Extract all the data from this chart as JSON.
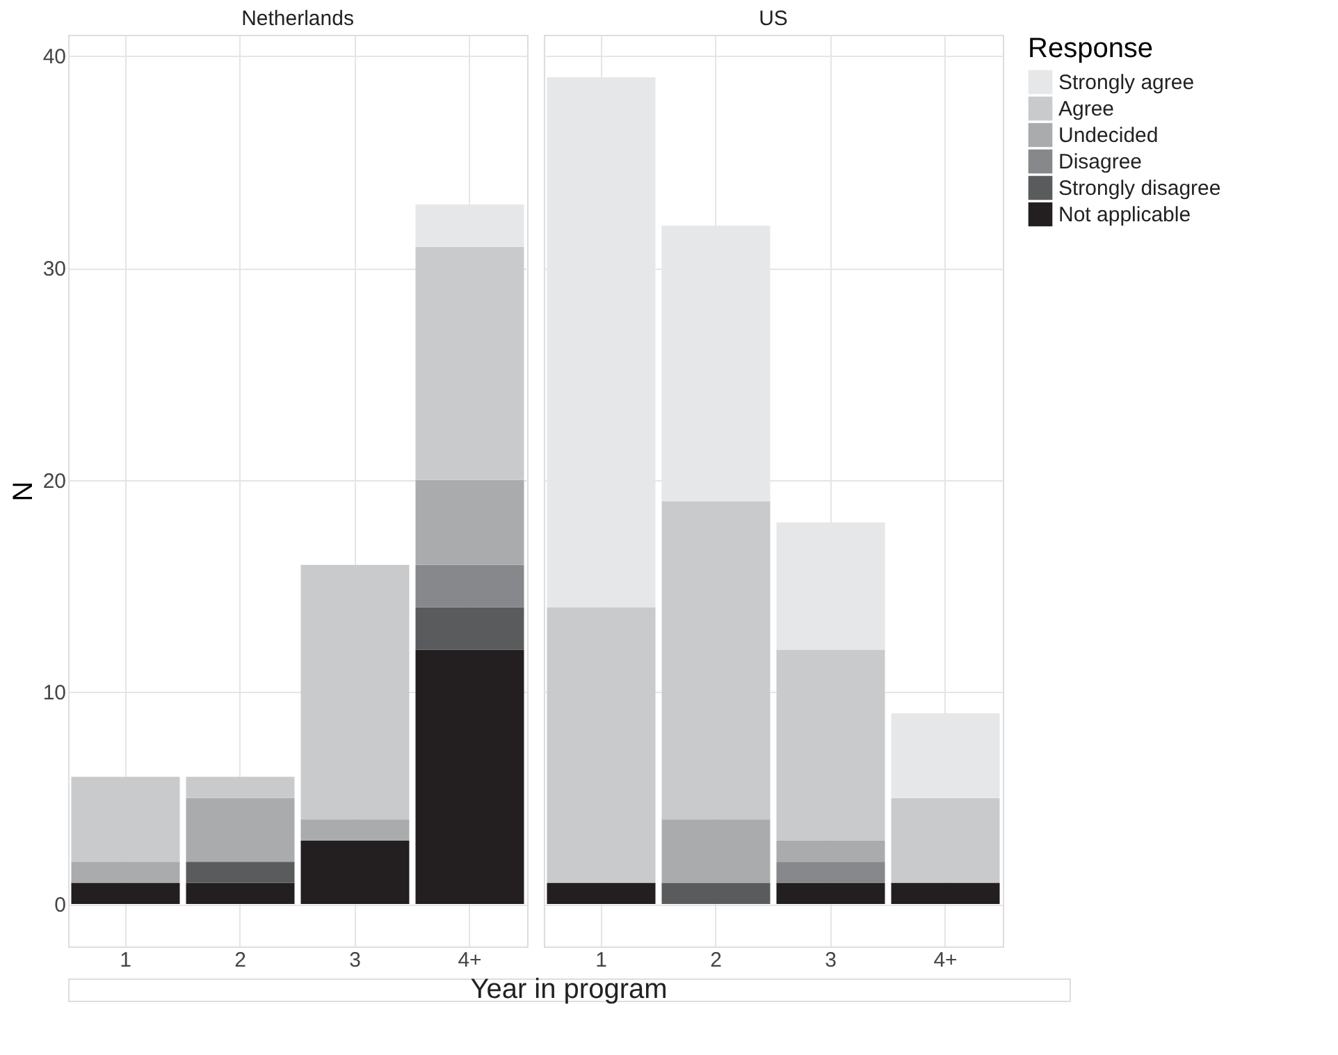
{
  "chart_data": [
    {
      "type": "bar",
      "title": "Netherlands",
      "xlabel": "Year in program",
      "ylabel": "N",
      "stacked": true,
      "categories": [
        "1",
        "2",
        "3",
        "4+"
      ],
      "ylim": [
        -2,
        41
      ],
      "yticks": [
        0,
        10,
        20,
        30,
        40
      ],
      "grid": true,
      "series": [
        {
          "color": "#231f20",
          "values": [
            1,
            1,
            3,
            12
          ]
        },
        {
          "color": "#5a5b5d",
          "values": [
            0,
            1,
            0,
            2
          ]
        },
        {
          "color": "#87888b",
          "values": [
            0,
            0,
            0,
            2
          ]
        },
        {
          "color": "#aaabad",
          "values": [
            1,
            3,
            1,
            4
          ]
        },
        {
          "color": "#c9cacc",
          "values": [
            4,
            1,
            12,
            11
          ]
        },
        {
          "color": "#e6e7e8",
          "values": [
            0,
            0,
            0,
            2
          ]
        }
      ]
    },
    {
      "type": "bar",
      "title": "US",
      "stacked": true,
      "categories": [
        "1",
        "2",
        "3",
        "4+"
      ],
      "ylim": [
        -2,
        41
      ],
      "yticks": [
        0,
        10,
        20,
        30,
        40
      ],
      "grid": true,
      "tick_labels": "x",
      "legend": "right",
      "legend_title": "Response",
      "series": [
        {
          "name": "Not applicable",
          "color": "#231f20",
          "values": [
            1,
            0,
            1,
            1
          ]
        },
        {
          "name": "Strongly disagree",
          "color": "#5a5b5d",
          "values": [
            0,
            1,
            0,
            0
          ]
        },
        {
          "name": "Disagree",
          "color": "#87888b",
          "values": [
            0,
            0,
            1,
            0
          ]
        },
        {
          "name": "Undecided",
          "color": "#aaabad",
          "values": [
            0,
            3,
            1,
            0
          ]
        },
        {
          "name": "Agree",
          "color": "#c9cacc",
          "values": [
            13,
            15,
            9,
            4
          ]
        },
        {
          "name": "Strongly agree",
          "color": "#e6e7e8",
          "values": [
            25,
            13,
            6,
            4
          ]
        }
      ]
    }
  ]
}
